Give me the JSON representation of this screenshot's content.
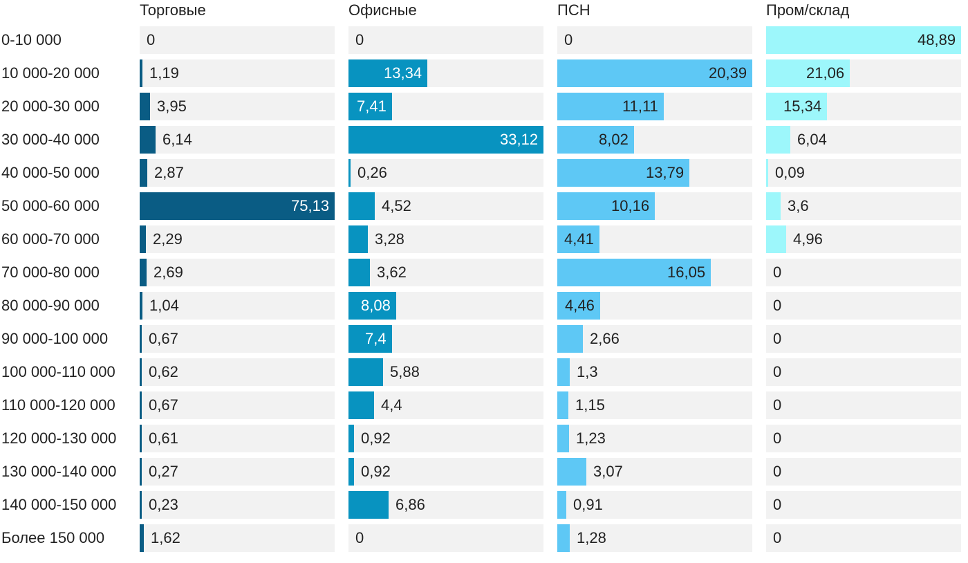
{
  "chart_data": {
    "type": "bar",
    "orientation": "horizontal",
    "layout": "small-multiples",
    "categories": [
      "0-10 000",
      "10 000-20 000",
      "20 000-30 000",
      "30 000-40 000",
      "40 000-50 000",
      "50 000-60 000",
      "60 000-70 000",
      "70 000-80 000",
      "80 000-90 000",
      "90 000-100 000",
      "100 000-110 000",
      "110 000-120 000",
      "120 000-130 000",
      "130 000-140 000",
      "140 000-150 000",
      "Более 150 000"
    ],
    "series": [
      {
        "name": "Торговые",
        "color": "#0a5c84",
        "label_color_inside": "#ffffff",
        "values": [
          0,
          1.19,
          3.95,
          6.14,
          2.87,
          75.13,
          2.29,
          2.69,
          1.04,
          0.67,
          0.62,
          0.67,
          0.61,
          0.27,
          0.23,
          1.62
        ],
        "labels": [
          "0",
          "1,19",
          "3,95",
          "6,14",
          "2,87",
          "75,13",
          "2,29",
          "2,69",
          "1,04",
          "0,67",
          "0,62",
          "0,67",
          "0,61",
          "0,27",
          "0,23",
          "1,62"
        ],
        "xlim": [
          0,
          75.13
        ]
      },
      {
        "name": "Офисные",
        "color": "#0893c0",
        "label_color_inside": "#ffffff",
        "values": [
          0,
          13.34,
          7.41,
          33.12,
          0.26,
          4.52,
          3.28,
          3.62,
          8.08,
          7.4,
          5.88,
          4.4,
          0.92,
          0.92,
          6.86,
          0
        ],
        "labels": [
          "0",
          "13,34",
          "7,41",
          "33,12",
          "0,26",
          "4,52",
          "3,28",
          "3,62",
          "8,08",
          "7,4",
          "5,88",
          "4,4",
          "0,92",
          "0,92",
          "6,86",
          "0"
        ],
        "xlim": [
          0,
          33.12
        ]
      },
      {
        "name": "ПСН",
        "color": "#5ec8f5",
        "label_color_inside": "#222222",
        "values": [
          0,
          20.39,
          11.11,
          8.02,
          13.79,
          10.16,
          4.41,
          16.05,
          4.46,
          2.66,
          1.3,
          1.15,
          1.23,
          3.07,
          0.91,
          1.28
        ],
        "labels": [
          "0",
          "20,39",
          "11,11",
          "8,02",
          "13,79",
          "10,16",
          "4,41",
          "16,05",
          "4,46",
          "2,66",
          "1,3",
          "1,15",
          "1,23",
          "3,07",
          "0,91",
          "1,28"
        ],
        "xlim": [
          0,
          20.39
        ]
      },
      {
        "name": "Пром/склад",
        "color": "#9df7fb",
        "label_color_inside": "#222222",
        "values": [
          48.89,
          21.06,
          15.34,
          6.04,
          0.09,
          3.6,
          4.96,
          0,
          0,
          0,
          0,
          0,
          0,
          0,
          0,
          0
        ],
        "labels": [
          "48,89",
          "21,06",
          "15,34",
          "6,04",
          "0,09",
          "3,6",
          "4,96",
          "0",
          "0",
          "0",
          "0",
          "0",
          "0",
          "0",
          "0",
          "0"
        ],
        "xlim": [
          0,
          48.89
        ]
      }
    ],
    "grid": false,
    "legend": "none"
  }
}
